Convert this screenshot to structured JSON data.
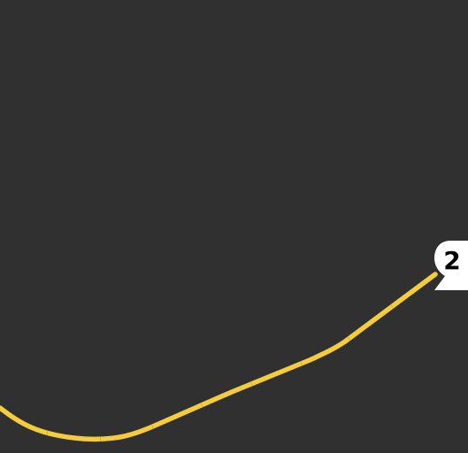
{
  "map": {
    "background_color": "#303030",
    "route": {
      "color": "#f5cc3d",
      "segments": 9
    },
    "marker": {
      "label": "2",
      "shape": "map-pin",
      "fill_color": "#ffffff",
      "text_color": "#000000"
    }
  }
}
